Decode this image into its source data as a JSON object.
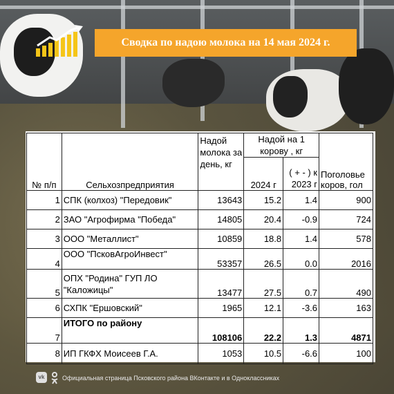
{
  "header": {
    "title": "Сводка по надою молока на 14 мая 2024 г.",
    "title_bg": "#f5a52b",
    "icon": "growth-chart-icon"
  },
  "table": {
    "headers": {
      "num": "№ п/п",
      "org": "Сельхозпредприятия",
      "milk_day": "Надой молока за день, кг",
      "per_cow_group": "Надой на 1 корову , кг",
      "per_cow_2024": "2024 г",
      "per_cow_diff": "( + - ) к 2023 г",
      "herd": "Поголовье коров, гол"
    },
    "rows": [
      {
        "n": "1",
        "org": "СПК (колхоз) \"Передовик\"",
        "milk": "13643",
        "y2024": "15.2",
        "diff": "1.4",
        "herd": "900"
      },
      {
        "n": "2",
        "org": "ЗАО \"Агрофирма \"Победа\"",
        "milk": "14805",
        "y2024": "20.4",
        "diff": "-0.9",
        "herd": "724"
      },
      {
        "n": "3",
        "org": "ООО \"Металлист\"",
        "milk": "10859",
        "y2024": "18.8",
        "diff": "1.4",
        "herd": "578"
      },
      {
        "n": "4",
        "org": "ООО \"ПсковАгроИнвест\"",
        "milk": "53357",
        "y2024": "26.5",
        "diff": "0.0",
        "herd": "2016"
      },
      {
        "n": "5",
        "org": "ОПХ \"Родина\" ГУП ЛО \"Каложицы\"",
        "milk": "13477",
        "y2024": "27.5",
        "diff": "0.7",
        "herd": "490"
      },
      {
        "n": "6",
        "org": "СХПК \"Ершовский\"",
        "milk": "1965",
        "y2024": "12.1",
        "diff": "-3.6",
        "herd": "163"
      },
      {
        "n": "7",
        "org": "ИТОГО по району",
        "milk": "108106",
        "y2024": "22.2",
        "diff": "1.3",
        "herd": "4871",
        "bold": true
      },
      {
        "n": "8",
        "org": "ИП ГКФХ Моисеев Г.А.",
        "milk": "1053",
        "y2024": "10.5",
        "diff": "-6.6",
        "herd": "100"
      }
    ]
  },
  "footer": {
    "text": "Официальная страница Псковского района ВКонтакте и в Одноклассниках",
    "vk_icon": "vk-icon",
    "ok_icon": "odnoklassniki-icon"
  }
}
